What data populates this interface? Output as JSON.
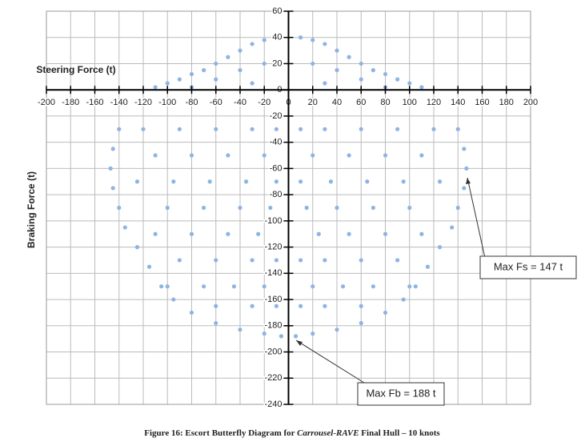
{
  "chart_data": {
    "type": "scatter",
    "x_label": "Steering Force (t)",
    "y_label": "Braking Force (t)",
    "caption": [
      "Figure 16: Escort Butterfly Diagram for ",
      "Carrousel-RAVE",
      " Final Hull – 10 knots"
    ],
    "annotations": [
      "Max Fs = 147 t",
      "Max Fb = 188 t"
    ],
    "color": "#8eb4e3",
    "grid": true,
    "xlim": [
      -200,
      200
    ],
    "ylim": [
      -240,
      60
    ],
    "xticks": [
      -200,
      -180,
      -160,
      -140,
      -120,
      -100,
      -80,
      -60,
      -40,
      -20,
      0,
      20,
      40,
      60,
      80,
      100,
      120,
      140,
      160,
      180,
      200
    ],
    "yticks": [
      -240,
      -220,
      -200,
      -180,
      -160,
      -140,
      -120,
      -100,
      -80,
      -60,
      -40,
      -20,
      0,
      20,
      40,
      60
    ],
    "x": [
      -10,
      -20,
      -30,
      -40,
      -50,
      -60,
      -70,
      -80,
      -90,
      -100,
      -110,
      -20,
      -40,
      -60,
      -30,
      -80,
      -140,
      -145,
      -147,
      -145,
      -140,
      -135,
      -125,
      -115,
      -105,
      -95,
      -80,
      -60,
      -40,
      -20,
      -6,
      -120,
      -90,
      -60,
      -30,
      -10,
      -110,
      -80,
      -50,
      -20,
      -125,
      -95,
      -65,
      -35,
      -10,
      -100,
      -70,
      -40,
      -15,
      -110,
      -80,
      -50,
      -25,
      -90,
      -60,
      -30,
      -10,
      -100,
      -70,
      -45,
      -20,
      -60,
      -30,
      -10,
      10,
      20,
      30,
      40,
      50,
      60,
      70,
      80,
      90,
      100,
      110,
      20,
      40,
      60,
      30,
      80,
      140,
      145,
      147,
      145,
      140,
      135,
      125,
      115,
      105,
      95,
      80,
      60,
      40,
      20,
      6,
      120,
      90,
      60,
      30,
      10,
      110,
      80,
      50,
      20,
      125,
      95,
      65,
      35,
      10,
      100,
      70,
      40,
      15,
      110,
      80,
      50,
      25,
      90,
      60,
      30,
      10,
      100,
      70,
      45,
      20,
      60,
      30,
      10
    ],
    "y": [
      40,
      38,
      35,
      30,
      25,
      20,
      15,
      12,
      8,
      5,
      2,
      20,
      15,
      8,
      5,
      2,
      -30,
      -45,
      -60,
      -75,
      -90,
      -105,
      -120,
      -135,
      -150,
      -160,
      -170,
      -178,
      -183,
      -186,
      -188,
      -30,
      -30,
      -30,
      -30,
      -30,
      -50,
      -50,
      -50,
      -50,
      -70,
      -70,
      -70,
      -70,
      -70,
      -90,
      -90,
      -90,
      -90,
      -110,
      -110,
      -110,
      -110,
      -130,
      -130,
      -130,
      -130,
      -150,
      -150,
      -150,
      -150,
      -165,
      -165,
      -165,
      40,
      38,
      35,
      30,
      25,
      20,
      15,
      12,
      8,
      5,
      2,
      20,
      15,
      8,
      5,
      2,
      -30,
      -45,
      -60,
      -75,
      -90,
      -105,
      -120,
      -135,
      -150,
      -160,
      -170,
      -178,
      -183,
      -186,
      -188,
      -30,
      -30,
      -30,
      -30,
      -30,
      -50,
      -50,
      -50,
      -50,
      -70,
      -70,
      -70,
      -70,
      -70,
      -90,
      -90,
      -90,
      -90,
      -110,
      -110,
      -110,
      -110,
      -130,
      -130,
      -130,
      -130,
      -150,
      -150,
      -150,
      -150,
      -165,
      -165,
      -165
    ]
  }
}
